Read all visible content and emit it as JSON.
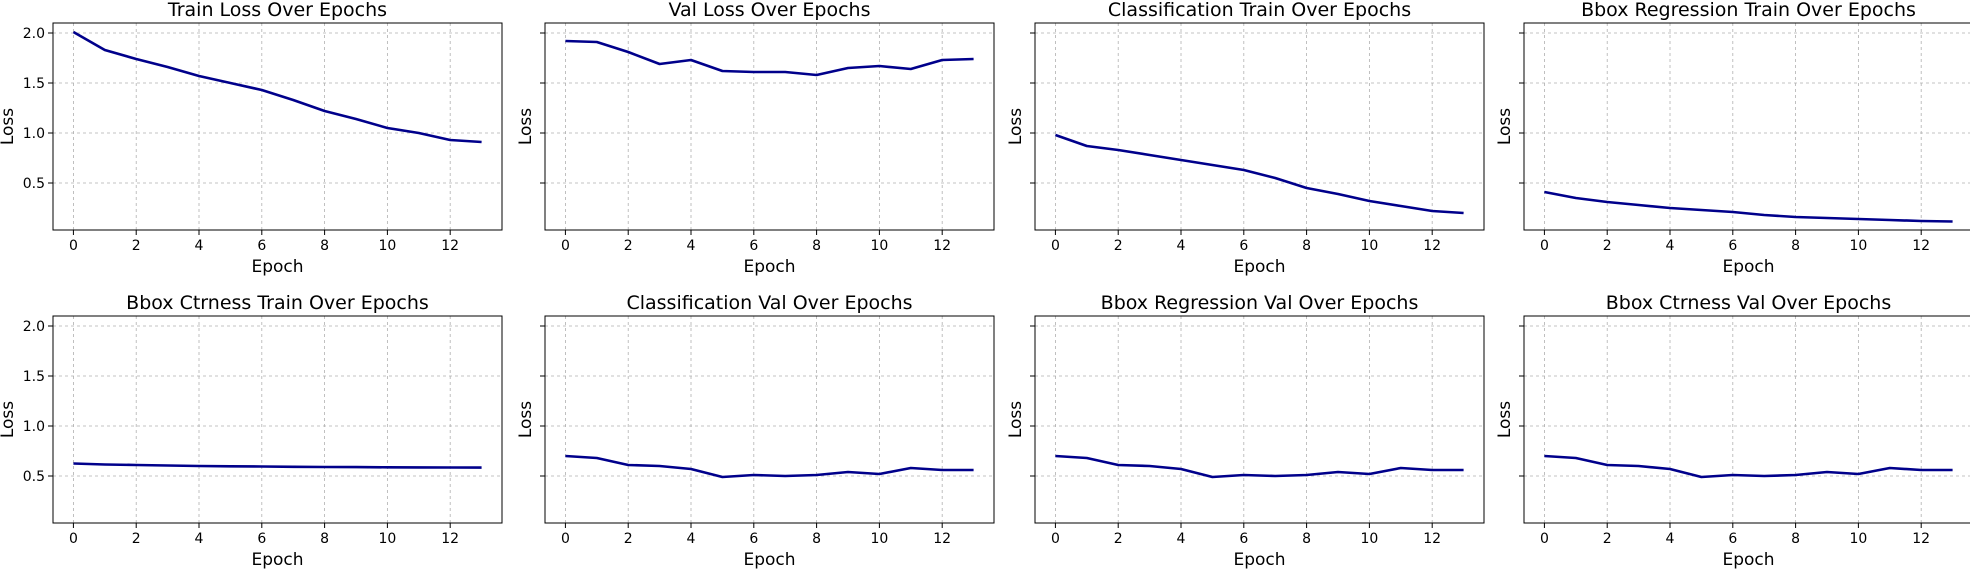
{
  "style": {
    "line_color": "#00008b"
  },
  "chart_data": [
    {
      "type": "line",
      "title": "Train Loss Over Epochs",
      "xlabel": "Epoch",
      "ylabel": "Loss",
      "xlim": [
        -0.65,
        13.65
      ],
      "ylim": [
        0.03,
        2.1
      ],
      "grid": true,
      "xticks": [
        0,
        2,
        4,
        6,
        8,
        10,
        12
      ],
      "yticks": [
        0.5,
        1.0,
        1.5,
        2.0
      ],
      "ytick_labels": [
        "0.5",
        "1.0",
        "1.5",
        "2.0"
      ],
      "x": [
        0,
        1,
        2,
        3,
        4,
        5,
        6,
        7,
        8,
        9,
        10,
        11,
        12,
        13
      ],
      "y": [
        2.01,
        1.83,
        1.74,
        1.66,
        1.57,
        1.5,
        1.43,
        1.33,
        1.22,
        1.14,
        1.05,
        1.0,
        0.93,
        0.91
      ]
    },
    {
      "type": "line",
      "title": "Val Loss Over Epochs",
      "xlabel": "Epoch",
      "ylabel": "Loss",
      "xlim": [
        -0.65,
        13.65
      ],
      "ylim": [
        0.03,
        2.1
      ],
      "grid": true,
      "xticks": [
        0,
        2,
        4,
        6,
        8,
        10,
        12
      ],
      "yticks": [
        0.5,
        1.0,
        1.5,
        2.0
      ],
      "ytick_labels": [
        "",
        "",
        "",
        ""
      ],
      "x": [
        0,
        1,
        2,
        3,
        4,
        5,
        6,
        7,
        8,
        9,
        10,
        11,
        12,
        13
      ],
      "y": [
        1.92,
        1.91,
        1.81,
        1.69,
        1.73,
        1.62,
        1.61,
        1.61,
        1.58,
        1.65,
        1.67,
        1.64,
        1.73,
        1.74
      ]
    },
    {
      "type": "line",
      "title": "Classification Train Over Epochs",
      "xlabel": "Epoch",
      "ylabel": "Loss",
      "xlim": [
        -0.65,
        13.65
      ],
      "ylim": [
        0.03,
        2.1
      ],
      "grid": true,
      "xticks": [
        0,
        2,
        4,
        6,
        8,
        10,
        12
      ],
      "yticks": [
        0.5,
        1.0,
        1.5,
        2.0
      ],
      "ytick_labels": [
        "",
        "",
        "",
        ""
      ],
      "x": [
        0,
        1,
        2,
        3,
        4,
        5,
        6,
        7,
        8,
        9,
        10,
        11,
        12,
        13
      ],
      "y": [
        0.98,
        0.87,
        0.83,
        0.78,
        0.73,
        0.68,
        0.63,
        0.55,
        0.45,
        0.39,
        0.32,
        0.27,
        0.22,
        0.2
      ]
    },
    {
      "type": "line",
      "title": "Bbox Regression Train Over Epochs",
      "xlabel": "Epoch",
      "ylabel": "Loss",
      "xlim": [
        -0.65,
        13.65
      ],
      "ylim": [
        0.03,
        2.1
      ],
      "grid": true,
      "xticks": [
        0,
        2,
        4,
        6,
        8,
        10,
        12
      ],
      "yticks": [
        0.5,
        1.0,
        1.5,
        2.0
      ],
      "ytick_labels": [
        "",
        "",
        "",
        ""
      ],
      "x": [
        0,
        1,
        2,
        3,
        4,
        5,
        6,
        7,
        8,
        9,
        10,
        11,
        12,
        13
      ],
      "y": [
        0.41,
        0.35,
        0.31,
        0.28,
        0.25,
        0.23,
        0.21,
        0.18,
        0.16,
        0.15,
        0.14,
        0.13,
        0.12,
        0.115
      ]
    },
    {
      "type": "line",
      "title": "Bbox Ctrness Train Over Epochs",
      "xlabel": "Epoch",
      "ylabel": "Loss",
      "xlim": [
        -0.65,
        13.65
      ],
      "ylim": [
        0.03,
        2.1
      ],
      "grid": true,
      "xticks": [
        0,
        2,
        4,
        6,
        8,
        10,
        12
      ],
      "yticks": [
        0.5,
        1.0,
        1.5,
        2.0
      ],
      "ytick_labels": [
        "0.5",
        "1.0",
        "1.5",
        "2.0"
      ],
      "x": [
        0,
        1,
        2,
        3,
        4,
        5,
        6,
        7,
        8,
        9,
        10,
        11,
        12,
        13
      ],
      "y": [
        0.625,
        0.615,
        0.61,
        0.605,
        0.6,
        0.597,
        0.595,
        0.592,
        0.59,
        0.589,
        0.587,
        0.586,
        0.585,
        0.584
      ]
    },
    {
      "type": "line",
      "title": "Classification Val Over Epochs",
      "xlabel": "Epoch",
      "ylabel": "Loss",
      "xlim": [
        -0.65,
        13.65
      ],
      "ylim": [
        0.03,
        2.1
      ],
      "grid": true,
      "xticks": [
        0,
        2,
        4,
        6,
        8,
        10,
        12
      ],
      "yticks": [
        0.5,
        1.0,
        1.5,
        2.0
      ],
      "ytick_labels": [
        "",
        "",
        "",
        ""
      ],
      "x": [
        0,
        1,
        2,
        3,
        4,
        5,
        6,
        7,
        8,
        9,
        10,
        11,
        12,
        13
      ],
      "y": [
        0.7,
        0.68,
        0.61,
        0.6,
        0.57,
        0.49,
        0.51,
        0.5,
        0.51,
        0.54,
        0.52,
        0.58,
        0.56,
        0.56
      ]
    },
    {
      "type": "line",
      "title": "Bbox Regression Val Over Epochs",
      "xlabel": "Epoch",
      "ylabel": "Loss",
      "xlim": [
        -0.65,
        13.65
      ],
      "ylim": [
        0.03,
        2.1
      ],
      "grid": true,
      "xticks": [
        0,
        2,
        4,
        6,
        8,
        10,
        12
      ],
      "yticks": [
        0.5,
        1.0,
        1.5,
        2.0
      ],
      "ytick_labels": [
        "",
        "",
        "",
        ""
      ],
      "x": [
        0,
        1,
        2,
        3,
        4,
        5,
        6,
        7,
        8,
        9,
        10,
        11,
        12,
        13
      ],
      "y": [
        0.7,
        0.68,
        0.61,
        0.6,
        0.57,
        0.49,
        0.51,
        0.5,
        0.51,
        0.54,
        0.52,
        0.58,
        0.56,
        0.56
      ]
    },
    {
      "type": "line",
      "title": "Bbox Ctrness Val Over Epochs",
      "xlabel": "Epoch",
      "ylabel": "Loss",
      "xlim": [
        -0.65,
        13.65
      ],
      "ylim": [
        0.03,
        2.1
      ],
      "grid": true,
      "xticks": [
        0,
        2,
        4,
        6,
        8,
        10,
        12
      ],
      "yticks": [
        0.5,
        1.0,
        1.5,
        2.0
      ],
      "ytick_labels": [
        "",
        "",
        "",
        ""
      ],
      "x": [
        0,
        1,
        2,
        3,
        4,
        5,
        6,
        7,
        8,
        9,
        10,
        11,
        12,
        13
      ],
      "y": [
        0.7,
        0.68,
        0.61,
        0.6,
        0.57,
        0.49,
        0.51,
        0.5,
        0.51,
        0.54,
        0.52,
        0.58,
        0.56,
        0.56
      ]
    }
  ]
}
